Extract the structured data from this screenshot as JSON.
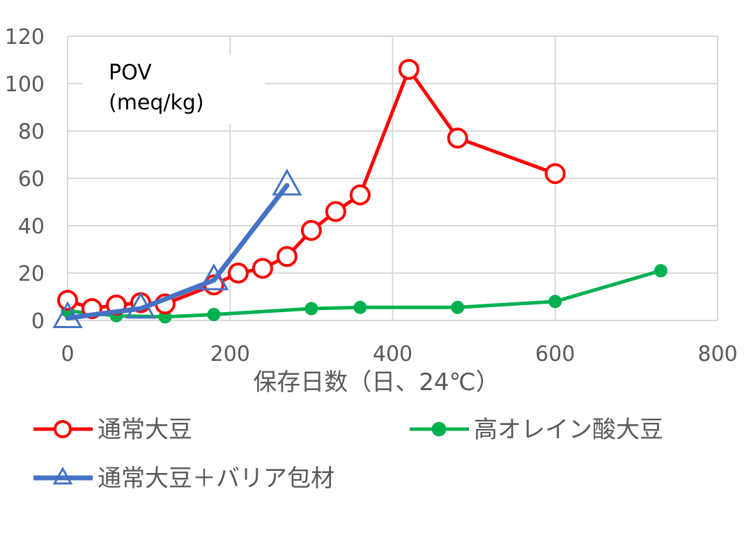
{
  "chart_data": {
    "type": "line",
    "title": "",
    "annotation": [
      "POV",
      "(meq/kg)"
    ],
    "xlabel": "保存日数（日、24℃）",
    "ylabel": "",
    "xlim": [
      0,
      800
    ],
    "ylim": [
      0,
      120
    ],
    "xticks": [
      0,
      200,
      400,
      600,
      800
    ],
    "yticks": [
      0,
      20,
      40,
      60,
      80,
      100,
      120
    ],
    "grid": true,
    "legend_position": "bottom",
    "series": [
      {
        "name": "通常大豆",
        "color": "#ff0000",
        "marker": "open-circle",
        "x": [
          0,
          30,
          60,
          90,
          120,
          180,
          210,
          240,
          270,
          300,
          330,
          360,
          420,
          480,
          600
        ],
        "y": [
          8.5,
          5,
          6.5,
          7.5,
          7,
          15,
          20,
          22,
          27,
          38,
          46,
          53,
          106,
          77,
          62
        ]
      },
      {
        "name": "高オレイン酸大豆",
        "color": "#00b050",
        "marker": "filled-circle",
        "x": [
          0,
          60,
          120,
          180,
          300,
          360,
          480,
          600,
          730
        ],
        "y": [
          4,
          2,
          1.5,
          2.5,
          5,
          5.5,
          5.5,
          8,
          21
        ]
      },
      {
        "name": "通常大豆＋バリア包材",
        "color": "#4472c4",
        "marker": "open-triangle",
        "x": [
          0,
          90,
          180,
          270
        ],
        "y": [
          1,
          5,
          17,
          57
        ]
      }
    ]
  }
}
